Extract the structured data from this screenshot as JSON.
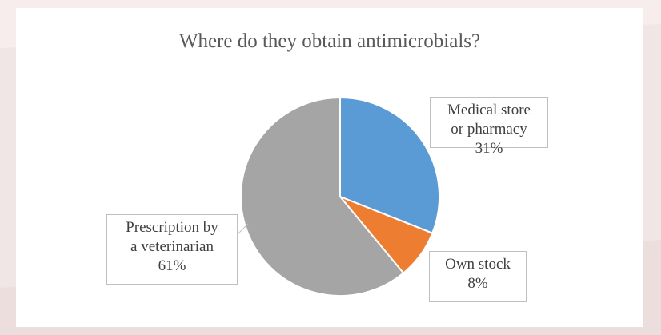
{
  "chart_data": {
    "type": "pie",
    "title": "Where do they obtain antimicrobials?",
    "slices": [
      {
        "label": "Medical store or pharmacy",
        "label_lines": [
          "Medical store",
          "or pharmacy"
        ],
        "value_label": "31%",
        "value": 31,
        "color": "#5b9bd5"
      },
      {
        "label": "Own stock",
        "label_lines": [
          "Own stock"
        ],
        "value_label": "8%",
        "value": 8,
        "color": "#ed7d31"
      },
      {
        "label": "Prescription by a veterinarian",
        "label_lines": [
          "Prescription by",
          "a veterinarian"
        ],
        "value_label": "61%",
        "value": 61,
        "color": "#a5a5a5"
      }
    ],
    "start_angle": "12 o'clock",
    "direction": "clockwise",
    "legend": "none",
    "data_labels": "callouts"
  },
  "colors": {
    "page_background": "#f1e6e6",
    "chart_background": "#ffffff",
    "title_text": "#595959",
    "label_text": "#404040",
    "callout_border": "#bfbfbf",
    "slice_border": "#ffffff"
  }
}
